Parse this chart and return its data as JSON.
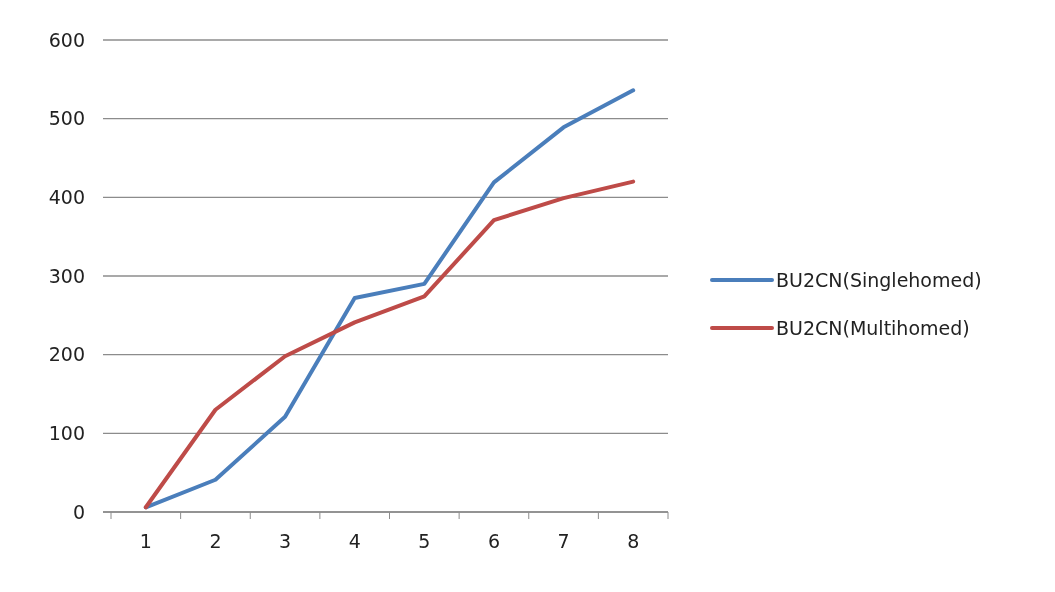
{
  "chart_data": {
    "type": "line",
    "categories": [
      "1",
      "2",
      "3",
      "4",
      "5",
      "6",
      "7",
      "8"
    ],
    "series": [
      {
        "name": "BU2CN(Singlehomed)",
        "color": "#4a7ebb",
        "values": [
          6,
          41,
          121,
          272,
          290,
          419,
          489,
          536
        ]
      },
      {
        "name": "BU2CN(Multihomed)",
        "color": "#be4b48",
        "values": [
          6,
          130,
          198,
          241,
          274,
          371,
          399,
          420
        ]
      }
    ],
    "ylim": [
      0,
      600
    ],
    "yticks": [
      0,
      100,
      200,
      300,
      400,
      500,
      600
    ],
    "grid": "y",
    "legend": "right",
    "marker": "none",
    "line_style": "solid"
  }
}
